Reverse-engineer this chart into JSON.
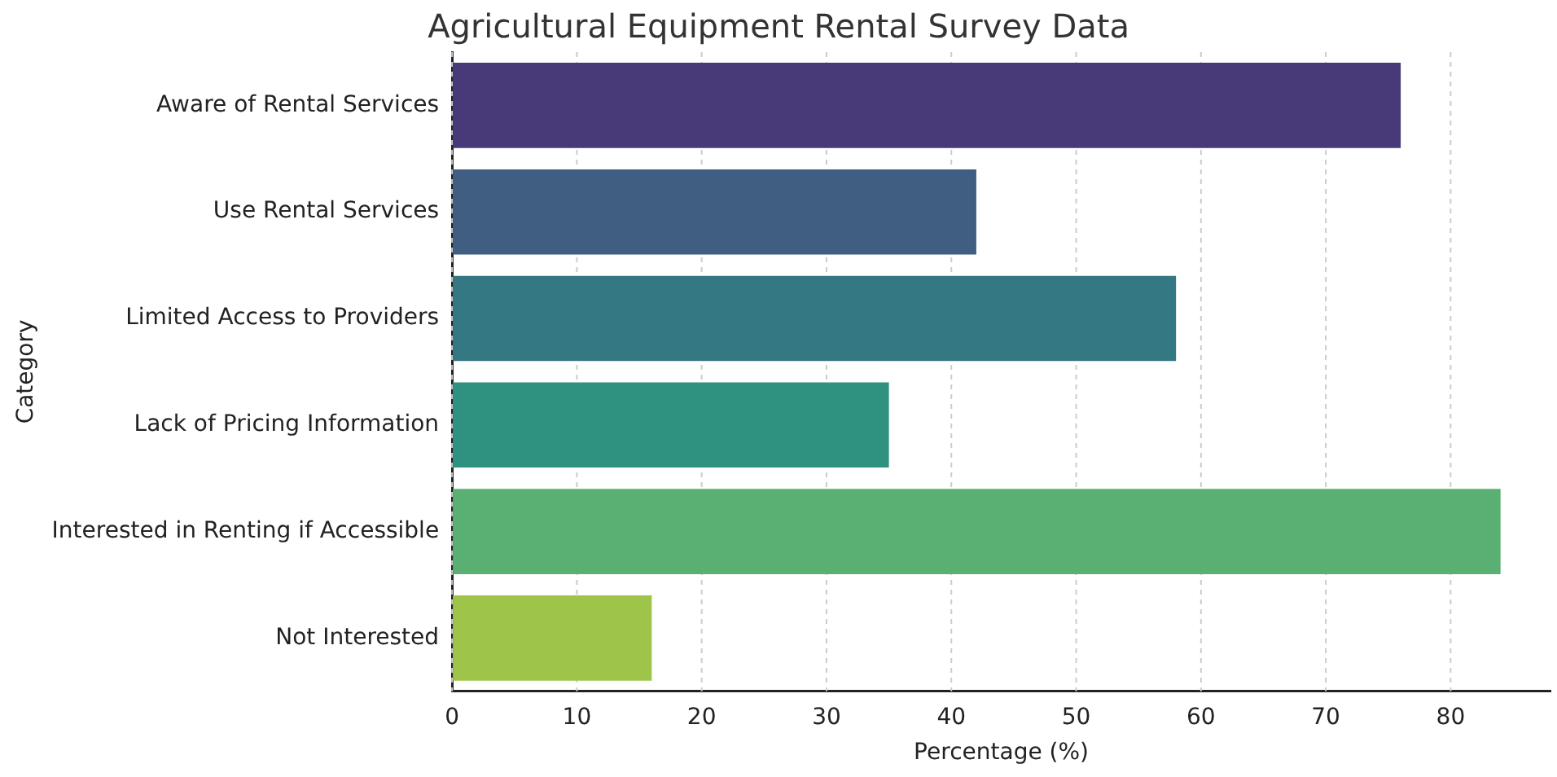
{
  "chart_data": {
    "type": "bar",
    "orientation": "horizontal",
    "title": "Agricultural Equipment Rental Survey Data",
    "xlabel": "Percentage (%)",
    "ylabel": "Category",
    "categories": [
      "Aware of Rental Services",
      "Use Rental Services",
      "Limited Access to Providers",
      "Lack of Pricing Information",
      "Interested in Renting if Accessible",
      "Not Interested"
    ],
    "values": [
      76,
      42,
      58,
      35,
      84,
      16
    ],
    "colors": [
      "#483a78",
      "#3f5e82",
      "#337882",
      "#2f917f",
      "#5aaf72",
      "#9ec54a"
    ],
    "xlim": [
      0,
      88
    ],
    "xticks": [
      0,
      10,
      20,
      30,
      40,
      50,
      60,
      70,
      80
    ],
    "grid": "x"
  }
}
